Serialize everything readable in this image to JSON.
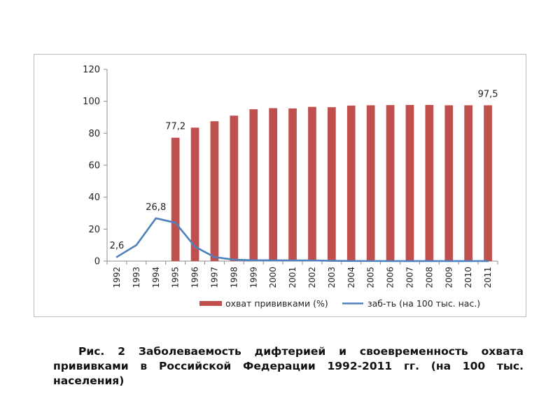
{
  "chart_data": {
    "type": "bar",
    "categories": [
      "1992",
      "1993",
      "1994",
      "1995",
      "1996",
      "1997",
      "1998",
      "1999",
      "2000",
      "2001",
      "2002",
      "2003",
      "2004",
      "2005",
      "2006",
      "2007",
      "2008",
      "2009",
      "2010",
      "2011"
    ],
    "ylim": [
      0,
      120
    ],
    "yticks": [
      "0",
      "20",
      "40",
      "60",
      "80",
      "100",
      "120"
    ],
    "series": [
      {
        "name": "охват прививками (%)",
        "kind": "bar",
        "color": "#c0504d",
        "values": [
          null,
          null,
          null,
          77.2,
          83.5,
          87.5,
          91,
          95,
          95.7,
          95.5,
          96.5,
          96.3,
          97.3,
          97.5,
          97.6,
          97.7,
          97.7,
          97.5,
          97.5,
          97.5
        ]
      },
      {
        "name": "заб-ть (на 100 тыс. нас.)",
        "kind": "line",
        "color": "#4f81bd",
        "values": [
          2.6,
          10,
          26.8,
          24,
          9,
          2.5,
          0.9,
          0.5,
          0.5,
          0.4,
          0.4,
          0.2,
          0.1,
          0.05,
          0.03,
          0.02,
          0.02,
          0.01,
          0.01,
          0.01
        ]
      }
    ],
    "data_labels": [
      {
        "series": 0,
        "index": 3,
        "text": "77,2"
      },
      {
        "series": 0,
        "index": 19,
        "text": "97,5"
      },
      {
        "series": 1,
        "index": 0,
        "text": "2,6"
      },
      {
        "series": 1,
        "index": 2,
        "text": "26,8"
      }
    ],
    "legend_position": "bottom"
  },
  "caption": "Рис. 2 Заболеваемость дифтерией   и своевременность охвата прививками в Российской Федерации 1992-2011 гг. (на 100 тыс. населения)"
}
